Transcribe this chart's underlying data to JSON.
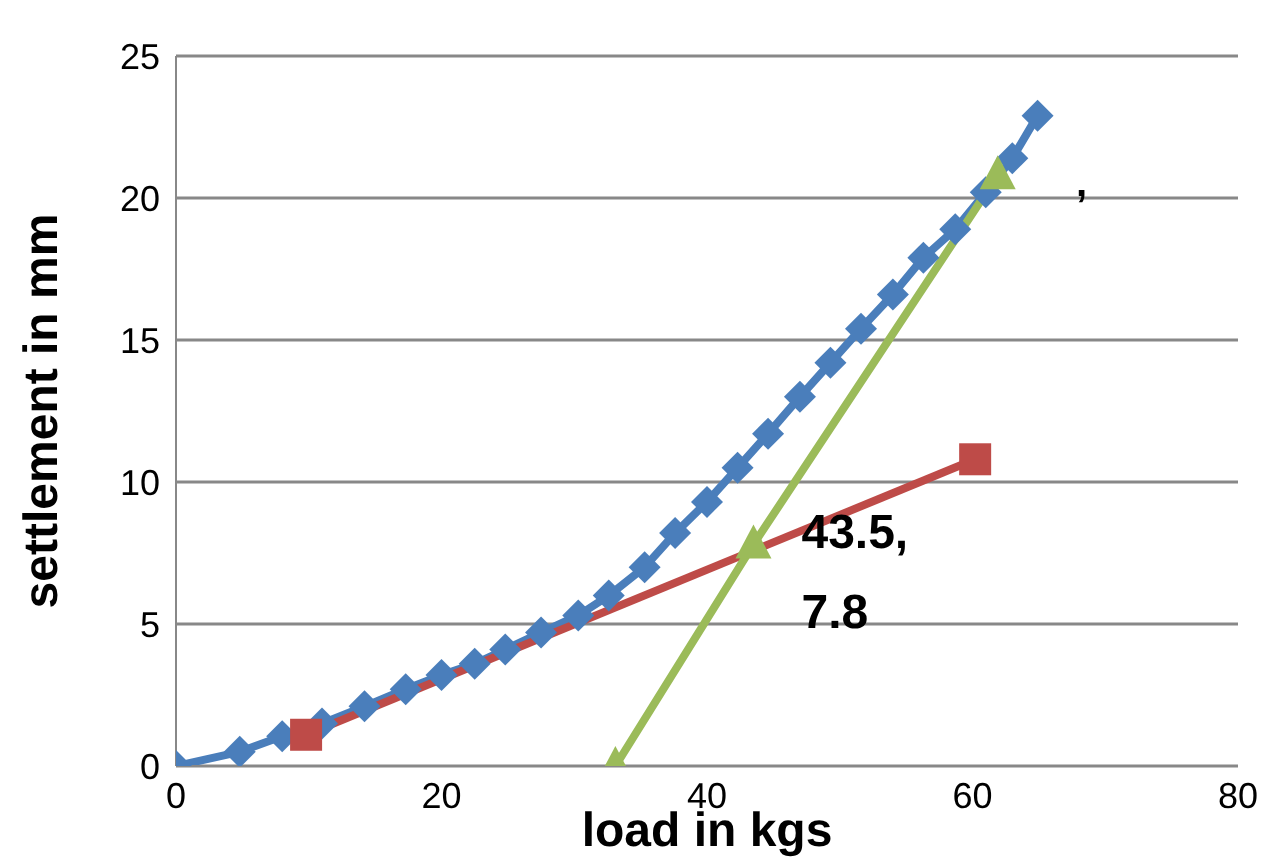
{
  "chart_data": {
    "type": "line",
    "xlabel": "load in kgs",
    "ylabel": "settlement in mm",
    "xlim": [
      0,
      80
    ],
    "xticks": [
      0,
      20,
      40,
      60,
      80
    ],
    "ylim": [
      0,
      25
    ],
    "yticks": [
      0,
      5,
      10,
      15,
      20,
      25
    ],
    "grid": "y",
    "legend": false,
    "series": [
      {
        "color": "#4a7ebb",
        "marker": "diamond",
        "x": [
          0,
          4.8,
          8,
          11,
          14.2,
          17.3,
          20,
          22.5,
          24.8,
          27.5,
          30.3,
          32.6,
          35.3,
          37.6,
          40,
          42.3,
          44.6,
          47,
          49.3,
          51.6,
          54,
          56.3,
          58.7,
          61,
          63,
          64.9
        ],
        "values": [
          0,
          0.5,
          1.05,
          1.5,
          2.1,
          2.7,
          3.2,
          3.6,
          4.1,
          4.7,
          5.3,
          6,
          7,
          8.2,
          9.3,
          10.5,
          11.7,
          13,
          14.2,
          15.4,
          16.6,
          17.9,
          18.9,
          20.2,
          21.4,
          22.9
        ]
      },
      {
        "color": "#be4b48",
        "marker": "square",
        "x": [
          9.8,
          60.2
        ],
        "values": [
          1.1,
          10.8
        ]
      },
      {
        "color": "#9bbb59",
        "marker": "triangle",
        "x": [
          33.1,
          43.5,
          61.9
        ],
        "values": [
          0,
          7.8,
          20.8
        ]
      }
    ],
    "annotations": [
      {
        "text": "43.5, 7.8",
        "x": 43.5,
        "y": 7.8
      },
      ","
    ]
  }
}
